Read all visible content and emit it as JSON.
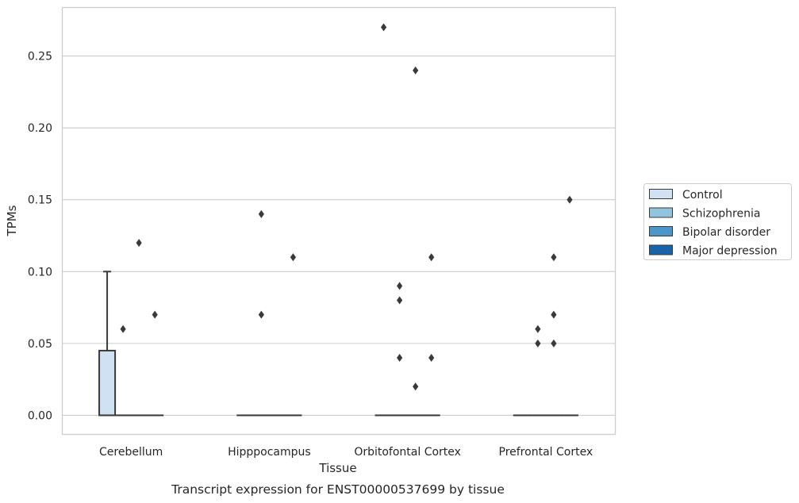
{
  "chart_data": {
    "type": "box",
    "xlabel": "Tissue",
    "ylabel": "TPMs",
    "caption": "Transcript expression for ENST00000537699 by tissue",
    "categories": [
      "Cerebellum",
      "Hipppocampus",
      "Orbitofontal Cortex",
      "Prefrontal Cortex"
    ],
    "ylim": [
      -0.013,
      0.284
    ],
    "yticks": [
      0.0,
      0.05,
      0.1,
      0.15,
      0.2,
      0.25
    ],
    "ytick_labels": [
      "0.00",
      "0.05",
      "0.10",
      "0.15",
      "0.20",
      "0.25"
    ],
    "grid": true,
    "legend_position": "right",
    "series": [
      {
        "name": "Control",
        "color": "#cfe1f2",
        "boxes": [
          {
            "category": "Cerebellum",
            "whislo": 0.0,
            "q1": 0.0,
            "median": 0.0,
            "q3": 0.045,
            "whishi": 0.1,
            "fliers": []
          },
          {
            "category": "Hipppocampus",
            "whislo": 0.0,
            "q1": 0.0,
            "median": 0.0,
            "q3": 0.0,
            "whishi": 0.0,
            "fliers": []
          },
          {
            "category": "Orbitofontal Cortex",
            "whislo": 0.0,
            "q1": 0.0,
            "median": 0.0,
            "q3": 0.0,
            "whishi": 0.0,
            "fliers": [
              0.27
            ]
          },
          {
            "category": "Prefrontal Cortex",
            "whislo": 0.0,
            "q1": 0.0,
            "median": 0.0,
            "q3": 0.0,
            "whishi": 0.0,
            "fliers": []
          }
        ]
      },
      {
        "name": "Schizophrenia",
        "color": "#93c4de",
        "boxes": [
          {
            "category": "Cerebellum",
            "whislo": 0.0,
            "q1": 0.0,
            "median": 0.0,
            "q3": 0.0,
            "whishi": 0.0,
            "fliers": [
              0.06
            ]
          },
          {
            "category": "Hipppocampus",
            "whislo": 0.0,
            "q1": 0.0,
            "median": 0.0,
            "q3": 0.0,
            "whishi": 0.0,
            "fliers": [
              0.14,
              0.07
            ]
          },
          {
            "category": "Orbitofontal Cortex",
            "whislo": 0.0,
            "q1": 0.0,
            "median": 0.0,
            "q3": 0.0,
            "whishi": 0.0,
            "fliers": [
              0.09,
              0.08,
              0.04
            ]
          },
          {
            "category": "Prefrontal Cortex",
            "whislo": 0.0,
            "q1": 0.0,
            "median": 0.0,
            "q3": 0.0,
            "whishi": 0.0,
            "fliers": [
              0.06,
              0.05
            ]
          }
        ]
      },
      {
        "name": "Bipolar disorder",
        "color": "#4b97c9",
        "boxes": [
          {
            "category": "Cerebellum",
            "whislo": 0.0,
            "q1": 0.0,
            "median": 0.0,
            "q3": 0.0,
            "whishi": 0.0,
            "fliers": [
              0.12
            ]
          },
          {
            "category": "Hipppocampus",
            "whislo": 0.0,
            "q1": 0.0,
            "median": 0.0,
            "q3": 0.0,
            "whishi": 0.0,
            "fliers": []
          },
          {
            "category": "Orbitofontal Cortex",
            "whislo": 0.0,
            "q1": 0.0,
            "median": 0.0,
            "q3": 0.0,
            "whishi": 0.0,
            "fliers": [
              0.24,
              0.02
            ]
          },
          {
            "category": "Prefrontal Cortex",
            "whislo": 0.0,
            "q1": 0.0,
            "median": 0.0,
            "q3": 0.0,
            "whishi": 0.0,
            "fliers": [
              0.11,
              0.07,
              0.05
            ]
          }
        ]
      },
      {
        "name": "Major depression",
        "color": "#1764ab",
        "boxes": [
          {
            "category": "Cerebellum",
            "whislo": 0.0,
            "q1": 0.0,
            "median": 0.0,
            "q3": 0.0,
            "whishi": 0.0,
            "fliers": [
              0.07
            ]
          },
          {
            "category": "Hipppocampus",
            "whislo": 0.0,
            "q1": 0.0,
            "median": 0.0,
            "q3": 0.0,
            "whishi": 0.0,
            "fliers": [
              0.11
            ]
          },
          {
            "category": "Orbitofontal Cortex",
            "whislo": 0.0,
            "q1": 0.0,
            "median": 0.0,
            "q3": 0.0,
            "whishi": 0.0,
            "fliers": [
              0.11,
              0.04
            ]
          },
          {
            "category": "Prefrontal Cortex",
            "whislo": 0.0,
            "q1": 0.0,
            "median": 0.0,
            "q3": 0.0,
            "whishi": 0.0,
            "fliers": [
              0.15
            ]
          }
        ]
      }
    ]
  }
}
